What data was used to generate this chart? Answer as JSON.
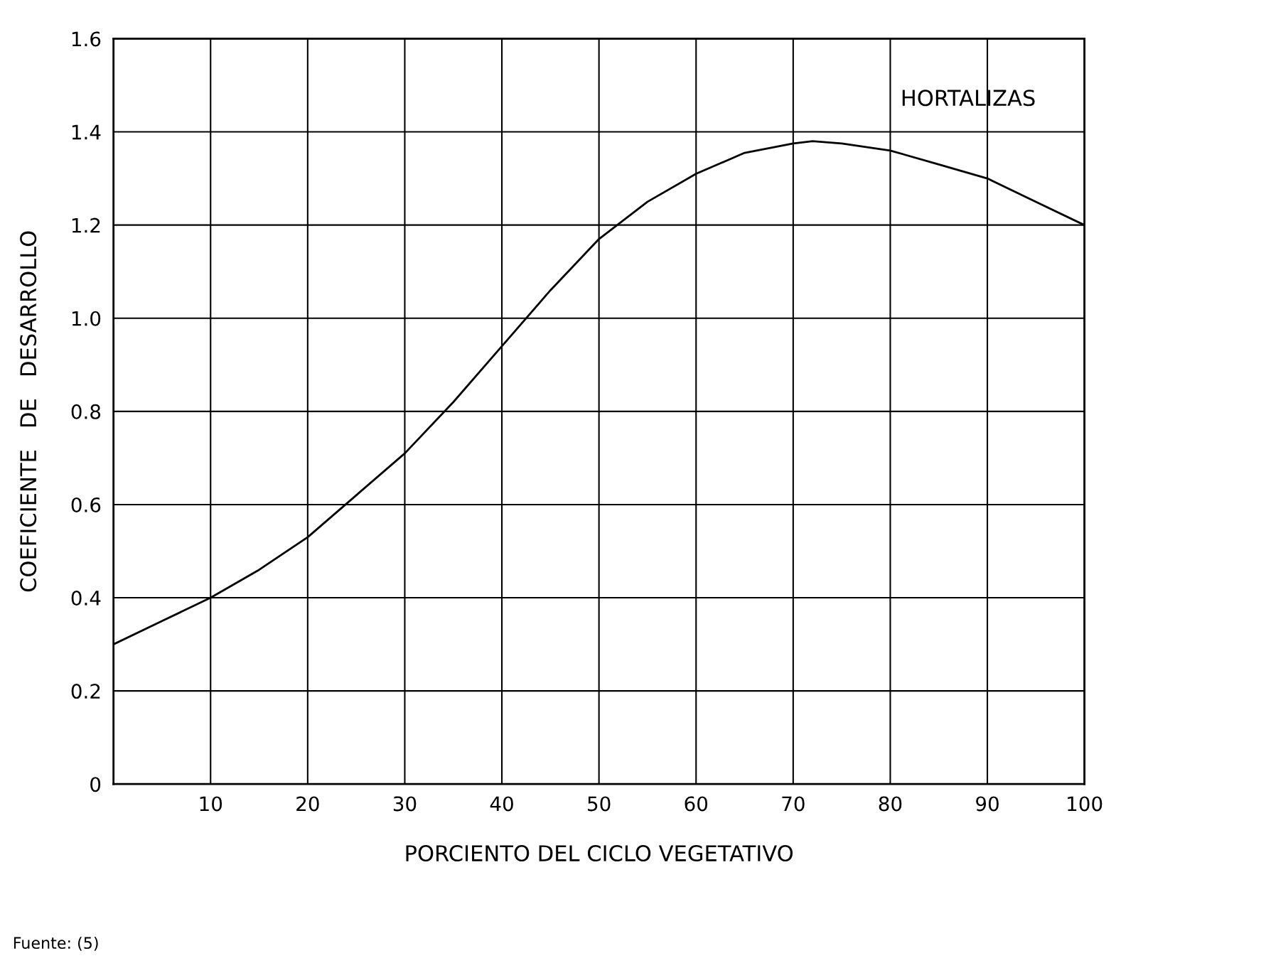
{
  "chart_data": {
    "type": "line",
    "xlabel": "PORCIENTO DEL CICLO VEGETATIVO",
    "ylabel": "COEFICIENTE   DE   DESARROLLO",
    "x": [
      0,
      5,
      10,
      15,
      20,
      25,
      30,
      35,
      40,
      45,
      50,
      55,
      60,
      65,
      70,
      72,
      75,
      80,
      85,
      90,
      95,
      100
    ],
    "series": [
      {
        "color": "#000000",
        "values": [
          0.3,
          0.35,
          0.4,
          0.46,
          0.53,
          0.62,
          0.71,
          0.82,
          0.94,
          1.06,
          1.17,
          1.25,
          1.31,
          1.355,
          1.375,
          1.38,
          1.375,
          1.36,
          1.33,
          1.3,
          1.25,
          1.2
        ]
      }
    ],
    "xlim": [
      0,
      100
    ],
    "ylim": [
      0,
      1.6
    ],
    "xticks": [
      {
        "value": 0,
        "label": null
      },
      10,
      20,
      30,
      40,
      50,
      60,
      70,
      80,
      90,
      100
    ],
    "yticks": [
      0,
      0.2,
      0.4,
      0.6,
      0.8,
      {
        "value": 1.0,
        "label": "1.0"
      },
      1.2,
      1.4,
      1.6
    ],
    "grid": true,
    "marker": "none",
    "line_style": "solid",
    "annotations": [
      "HORTALIZAS",
      "Fuente: (5)"
    ]
  }
}
